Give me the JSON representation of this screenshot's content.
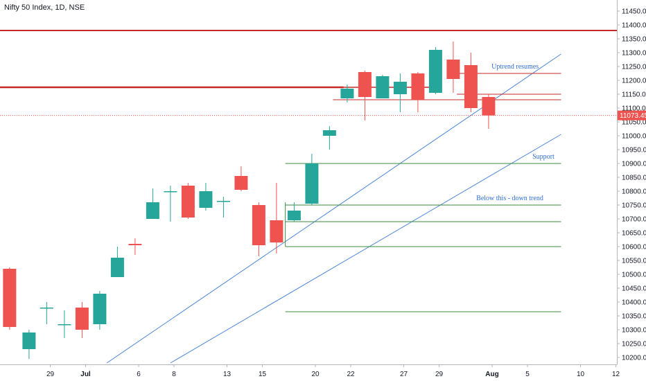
{
  "header": {
    "symbol_title": "Nifty 50 Index, 1D, NSE"
  },
  "price_label": {
    "text": "11073.45",
    "value": 11073.45,
    "color": "#ef5350"
  },
  "colors": {
    "up": "#26a69a",
    "down": "#ef5350",
    "resistance": "#c62828",
    "support": "#388e3c",
    "trend": "#4a86d8",
    "axis_text": "#131722",
    "annotation": "#2f6fd6"
  },
  "chart_data": {
    "type": "candlestick",
    "title": "Nifty 50 Index, 1D, NSE",
    "xlabel": "",
    "ylabel": "",
    "ylim": [
      10180,
      11470
    ],
    "yticks": [
      11450,
      11400,
      11350,
      11300,
      11250,
      11200,
      11150,
      11100,
      11050,
      11000,
      10950,
      10900,
      10850,
      10800,
      10750,
      10700,
      10650,
      10600,
      10550,
      10500,
      10450,
      10400,
      10350,
      10300,
      10250,
      10200
    ],
    "ytick_labels": [
      "11450.00",
      "11400.00",
      "11350.00",
      "11300.00",
      "11250.00",
      "11200.00",
      "11150.00",
      "11100.00",
      "11050.00",
      "11000.00",
      "10950.00",
      "10900.00",
      "10850.00",
      "10800.00",
      "10750.00",
      "10700.00",
      "10650.00",
      "10600.00",
      "10550.00",
      "10500.00",
      "10450.00",
      "10400.00",
      "10350.00",
      "10300.00",
      "10250.00",
      "10200.00"
    ],
    "xticks": [
      {
        "label": "29",
        "slot": 2
      },
      {
        "label": "Jul",
        "slot": 4
      },
      {
        "label": "6",
        "slot": 7
      },
      {
        "label": "8",
        "slot": 9
      },
      {
        "label": "13",
        "slot": 12
      },
      {
        "label": "15",
        "slot": 14
      },
      {
        "label": "20",
        "slot": 17
      },
      {
        "label": "22",
        "slot": 19
      },
      {
        "label": "27",
        "slot": 22
      },
      {
        "label": "29",
        "slot": 24
      },
      {
        "label": "Aug",
        "slot": 27
      },
      {
        "label": "5",
        "slot": 29
      },
      {
        "label": "10",
        "slot": 32
      },
      {
        "label": "12",
        "slot": 34
      }
    ],
    "candles": [
      {
        "slot": -0.3,
        "open": 10520,
        "close": 10310,
        "high": 10525,
        "low": 10300
      },
      {
        "slot": 0.8,
        "open": 10230,
        "close": 10290,
        "high": 10300,
        "low": 10195
      },
      {
        "slot": 1.8,
        "open": 10380,
        "close": 10380,
        "high": 10400,
        "low": 10320
      },
      {
        "slot": 2.8,
        "open": 10320,
        "close": 10320,
        "high": 10370,
        "low": 10270
      },
      {
        "slot": 3.8,
        "open": 10380,
        "close": 10300,
        "high": 10400,
        "low": 10270
      },
      {
        "slot": 4.8,
        "open": 10320,
        "close": 10430,
        "high": 10440,
        "low": 10300
      },
      {
        "slot": 5.8,
        "open": 10490,
        "close": 10560,
        "high": 10600,
        "low": 10490
      },
      {
        "slot": 6.8,
        "open": 10610,
        "close": 10605,
        "high": 10630,
        "low": 10570
      },
      {
        "slot": 7.8,
        "open": 10700,
        "close": 10760,
        "high": 10810,
        "low": 10700
      },
      {
        "slot": 8.8,
        "open": 10800,
        "close": 10800,
        "high": 10820,
        "low": 10690
      },
      {
        "slot": 9.8,
        "open": 10820,
        "close": 10705,
        "high": 10830,
        "low": 10700
      },
      {
        "slot": 10.8,
        "open": 10740,
        "close": 10800,
        "high": 10830,
        "low": 10730
      },
      {
        "slot": 11.8,
        "open": 10765,
        "close": 10765,
        "high": 10780,
        "low": 10705
      },
      {
        "slot": 12.8,
        "open": 10855,
        "close": 10805,
        "high": 10890,
        "low": 10800
      },
      {
        "slot": 13.8,
        "open": 10750,
        "close": 10605,
        "high": 10760,
        "low": 10565
      },
      {
        "slot": 14.8,
        "open": 10695,
        "close": 10615,
        "high": 10830,
        "low": 10575
      },
      {
        "slot": 15.8,
        "open": 10695,
        "close": 10730,
        "high": 10760,
        "low": 10690
      },
      {
        "slot": 16.8,
        "open": 10755,
        "close": 10900,
        "high": 10935,
        "low": 10750
      },
      {
        "slot": 17.8,
        "open": 11000,
        "close": 11020,
        "high": 11035,
        "low": 10950
      },
      {
        "slot": 18.8,
        "open": 11135,
        "close": 11170,
        "high": 11185,
        "low": 11120
      },
      {
        "slot": 19.8,
        "open": 11230,
        "close": 11140,
        "high": 11235,
        "low": 11055
      },
      {
        "slot": 20.8,
        "open": 11135,
        "close": 11215,
        "high": 11220,
        "low": 11135
      },
      {
        "slot": 21.8,
        "open": 11150,
        "close": 11195,
        "high": 11225,
        "low": 11085
      },
      {
        "slot": 22.8,
        "open": 11225,
        "close": 11130,
        "high": 11230,
        "low": 11085
      },
      {
        "slot": 23.8,
        "open": 11155,
        "close": 11310,
        "high": 11320,
        "low": 11150
      },
      {
        "slot": 24.8,
        "open": 11275,
        "close": 11205,
        "high": 11340,
        "low": 11155
      },
      {
        "slot": 25.8,
        "open": 11255,
        "close": 11100,
        "high": 11300,
        "low": 11085
      },
      {
        "slot": 26.8,
        "open": 11140,
        "close": 11073.45,
        "high": 11150,
        "low": 11025
      }
    ],
    "horizontal_lines": [
      {
        "name": "resistance-line-11380",
        "price": 11380,
        "from_slot": -1.5,
        "to_slot": 35.5,
        "color": "#c62828",
        "width": 2
      },
      {
        "name": "resistance-line-11175",
        "price": 11175,
        "from_slot": -1.5,
        "to_slot": 18.6,
        "color": "#c62828",
        "width": 2.5
      },
      {
        "name": "resistance-line-11175b",
        "price": 11175,
        "from_slot": 18.6,
        "to_slot": 24.0,
        "color": "#c62828",
        "width": 1.5
      },
      {
        "name": "uptrend-resumes-line",
        "price": 11225,
        "from_slot": 25.0,
        "to_slot": 30.9,
        "color": "#c62828",
        "width": 1
      },
      {
        "name": "resistance-line-11150",
        "price": 11150,
        "from_slot": 25.0,
        "to_slot": 30.9,
        "color": "#c62828",
        "width": 1
      },
      {
        "name": "resistance-line-11130",
        "price": 11130,
        "from_slot": 18.0,
        "to_slot": 30.9,
        "color": "#c62828",
        "width": 1
      },
      {
        "name": "support-line-10900",
        "price": 10900,
        "from_slot": 15.3,
        "to_slot": 30.9,
        "color": "#388e3c",
        "width": 1
      },
      {
        "name": "support-line-10750",
        "price": 10750,
        "from_slot": 15.3,
        "to_slot": 30.9,
        "color": "#388e3c",
        "width": 1
      },
      {
        "name": "support-line-10690",
        "price": 10690,
        "from_slot": 15.3,
        "to_slot": 30.9,
        "color": "#388e3c",
        "width": 1
      },
      {
        "name": "support-line-10600",
        "price": 10600,
        "from_slot": 15.3,
        "to_slot": 30.9,
        "color": "#388e3c",
        "width": 1
      },
      {
        "name": "support-line-10365",
        "price": 10365,
        "from_slot": 15.3,
        "to_slot": 30.9,
        "color": "#388e3c",
        "width": 1
      }
    ],
    "vertical_lines": [
      {
        "name": "support-bracket-line",
        "slot": 15.3,
        "from_price": 10600,
        "to_price": 10760,
        "color": "#388e3c"
      }
    ],
    "trend_lines": [
      {
        "name": "upper-trend-line",
        "from": {
          "slot": 5.2,
          "price": 10180
        },
        "to": {
          "slot": 30.9,
          "price": 11295
        },
        "color": "#4a86d8"
      },
      {
        "name": "lower-trend-line",
        "from": {
          "slot": 8.8,
          "price": 10180
        },
        "to": {
          "slot": 30.9,
          "price": 11005
        },
        "color": "#4a86d8"
      }
    ],
    "annotations": [
      {
        "name": "uptrend-resumes-label",
        "text": "Uptrend resumes",
        "slot": 28.3,
        "price": 11242
      },
      {
        "name": "support-label",
        "text": "Support",
        "slot": 29.9,
        "price": 10917
      },
      {
        "name": "below-this-label",
        "text": "Below this - down trend",
        "slot": 28.0,
        "price": 10767
      }
    ]
  }
}
